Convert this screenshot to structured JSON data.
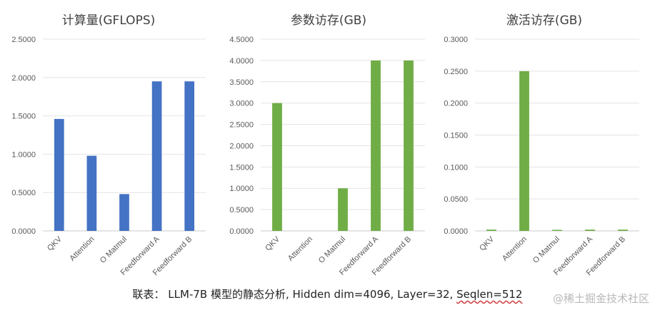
{
  "chart_data": [
    {
      "type": "bar",
      "title": "计算量(GFLOPS)",
      "categories": [
        "QKV",
        "Attention",
        "O Matmul",
        "Feedforward A",
        "Feedforward B"
      ],
      "values": [
        1.46,
        0.98,
        0.48,
        1.95,
        1.95
      ],
      "ylim": [
        0,
        2.5
      ],
      "yticks": [
        "0.0000",
        "0.5000",
        "1.0000",
        "1.5000",
        "2.0000",
        "2.5000"
      ],
      "grid": true,
      "color": "#4472C4"
    },
    {
      "type": "bar",
      "title": "参数访存(GB)",
      "categories": [
        "QKV",
        "Attention",
        "O Matmul",
        "Feedforward A",
        "Feedforward B"
      ],
      "values": [
        3.0,
        0,
        1.0,
        4.0,
        4.0
      ],
      "ylim": [
        0,
        4.5
      ],
      "yticks": [
        "0.0000",
        "0.5000",
        "1.0000",
        "1.5000",
        "2.0000",
        "2.5000",
        "3.0000",
        "3.5000",
        "4.0000",
        "4.5000"
      ],
      "grid": true,
      "color": "#70AD47"
    },
    {
      "type": "bar",
      "title": "激活访存(GB)",
      "categories": [
        "QKV",
        "Attention",
        "O Matmul",
        "Feedforward A",
        "Feedforward B"
      ],
      "values": [
        0.002,
        0.25,
        0.001,
        0.002,
        0.002
      ],
      "ylim": [
        0,
        0.3
      ],
      "yticks": [
        "0.0000",
        "0.0500",
        "0.1000",
        "0.1500",
        "0.2000",
        "0.2500",
        "0.3000"
      ],
      "grid": true,
      "color": "#70AD47"
    }
  ],
  "caption": {
    "prefix": "联表： LLM-7B 模型的静态分析, Hidden dim=4096, Layer=32, ",
    "seq": "Seqlen=512"
  },
  "watermark": "@稀土掘金技术社区"
}
